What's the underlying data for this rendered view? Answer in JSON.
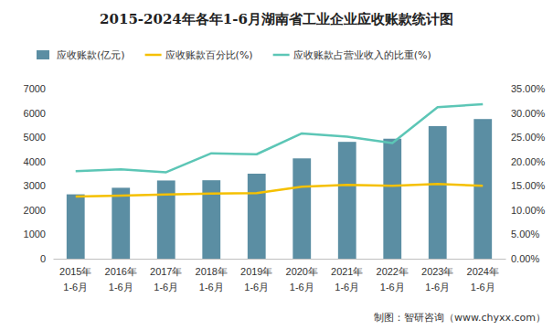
{
  "chart_data": {
    "type": "bar",
    "title": "2015-2024年各年1-6月湖南省工业企业应收账款统计图",
    "annotations": [
      "制图：智研咨询（www.chyxx.com）"
    ],
    "categories": [
      "2015年\n1-6月",
      "2016年\n1-6月",
      "2017年\n1-6月",
      "2018年\n1-6月",
      "2019年\n1-6月",
      "2020年\n1-6月",
      "2021年\n1-6月",
      "2022年\n1-6月",
      "2023年\n1-6月",
      "2024年\n1-6月"
    ],
    "series": [
      {
        "name": "应收账款(亿元)",
        "type": "bar",
        "color": "#5b8ea3",
        "values": [
          2650,
          2920,
          3220,
          3230,
          3500,
          4130,
          4810,
          4940,
          5460,
          5750
        ]
      },
      {
        "name": "应收账款百分比(%)",
        "type": "line",
        "axis": "y2",
        "color": "#f5c000",
        "values": [
          12.8,
          13.0,
          13.2,
          13.4,
          13.5,
          14.8,
          15.2,
          15.0,
          15.4,
          15.0
        ]
      },
      {
        "name": "应收账款占营业收入的比重(%)",
        "type": "line",
        "axis": "y2",
        "color": "#5cc6b6",
        "values": [
          18.0,
          18.4,
          17.8,
          21.7,
          21.5,
          25.8,
          25.1,
          23.8,
          31.2,
          31.8
        ]
      }
    ],
    "ylim": [
      0,
      7000
    ],
    "yticks": [
      0,
      1000,
      2000,
      3000,
      4000,
      5000,
      6000,
      7000
    ],
    "y2lim": [
      0,
      35
    ],
    "y2ticks": [
      {
        "value": 0,
        "label": "0.00%"
      },
      {
        "value": 5,
        "label": "5.00%"
      },
      {
        "value": 10,
        "label": "10.00%"
      },
      {
        "value": 15,
        "label": "15.00%"
      },
      {
        "value": 20,
        "label": "20.00%"
      },
      {
        "value": 25,
        "label": "25.00%"
      },
      {
        "value": 30,
        "label": "30.00%"
      },
      {
        "value": 35,
        "label": "35.00%"
      }
    ],
    "grid": false,
    "legend": "top"
  }
}
